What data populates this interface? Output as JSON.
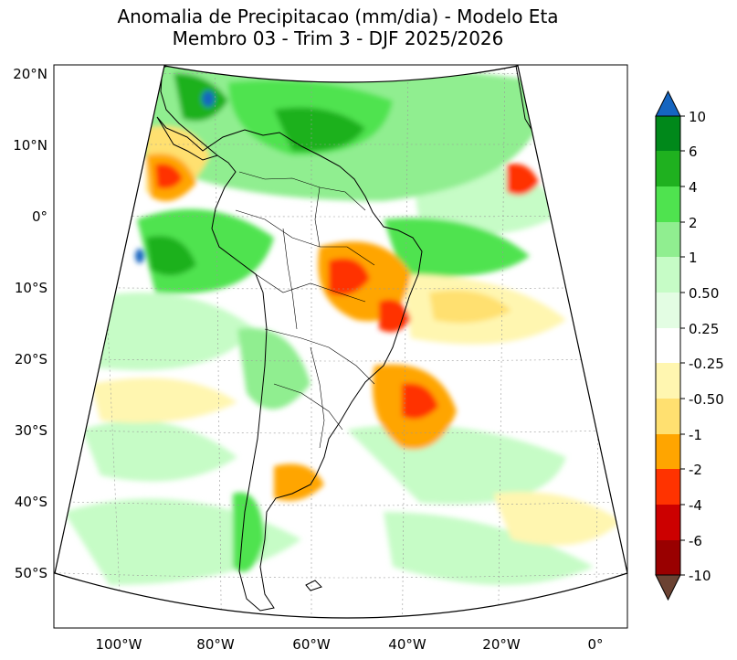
{
  "title": {
    "line1": "Anomalia de Precipitacao (mm/dia) - Modelo Eta",
    "line2": "Membro 03 - Trim 3 - DJF 2025/2026"
  },
  "axes": {
    "lat_labels": [
      "20°N",
      "10°N",
      "0°",
      "10°S",
      "20°S",
      "30°S",
      "40°S",
      "50°S"
    ],
    "lon_labels": [
      "100°W",
      "80°W",
      "60°W",
      "40°W",
      "20°W",
      "0°"
    ]
  },
  "colorbar": {
    "labels": [
      "10",
      "6",
      "4",
      "2",
      "1",
      "0.50",
      "0.25",
      "-0.25",
      "-0.50",
      "-1",
      "-2",
      "-4",
      "-6",
      "-10"
    ],
    "colors": {
      "over": "#1565c0",
      "c6_10": "#00881a",
      "c4_6": "#1fb11f",
      "c2_4": "#4fe34f",
      "c1_2": "#90ee90",
      "c050_1": "#c6fcc6",
      "c025_050": "#e3fde3",
      "c0": "#ffffff",
      "cm025": "#fff6b0",
      "cm050": "#ffe070",
      "cm1": "#ffa500",
      "cm2": "#ff3300",
      "cm4": "#cc0000",
      "cm6": "#990000",
      "under": "#6b4232"
    }
  }
}
